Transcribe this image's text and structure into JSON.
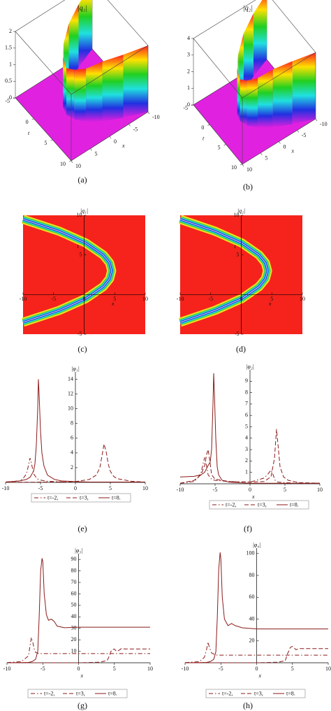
{
  "chart_data": [
    {
      "type": "surface",
      "title": "|q₁|",
      "caption": "(a)",
      "x_label": "x",
      "t_label": "t",
      "xlim": [
        -10,
        10
      ],
      "tlim": [
        -5,
        10
      ],
      "zlim": [
        0,
        2
      ],
      "xticks": [
        10,
        5,
        0,
        -5,
        -10
      ],
      "tticks": [
        -5,
        0,
        5,
        10
      ],
      "zticks": [
        0,
        0.5,
        1,
        1.5,
        2
      ],
      "t": [
        -5,
        -3.5,
        -2,
        -0.5,
        1,
        2.5,
        4,
        5.5,
        7,
        8.5,
        10
      ],
      "x": [
        -10,
        -5,
        -1,
        1.8,
        3.4,
        4,
        3.4,
        1.8,
        -1,
        -5,
        -10
      ],
      "values": [
        2,
        1.9,
        1.8,
        1.6,
        1.5,
        1.4,
        1.5,
        1.6,
        1.8,
        1.9,
        2
      ],
      "floor_color": "#e022e0"
    },
    {
      "type": "surface",
      "title": "|q₂|",
      "caption": "(b)",
      "x_label": "x",
      "t_label": "t",
      "xlim": [
        -10,
        10
      ],
      "tlim": [
        -5,
        10
      ],
      "zlim": [
        0,
        4
      ],
      "xticks": [
        10,
        5,
        0,
        -5,
        -10
      ],
      "tticks": [
        -5,
        0,
        5,
        10
      ],
      "zticks": [
        0,
        1,
        2,
        3,
        4
      ],
      "t": [
        -5,
        -3.5,
        -2,
        -0.5,
        1,
        2.5,
        4,
        5.5,
        7,
        8.5,
        10
      ],
      "x": [
        -10,
        -5,
        -1,
        1.8,
        3.4,
        4,
        3.4,
        1.8,
        -1,
        -5,
        -10
      ],
      "values": [
        4,
        3.8,
        3.5,
        3,
        2.7,
        2.5,
        2.7,
        3,
        3.5,
        3.8,
        4
      ],
      "floor_color": "#e022e0"
    },
    {
      "type": "density",
      "title": "|q₁|",
      "caption": "(c)",
      "x_label": "x",
      "y_label": "t",
      "xlim": [
        -10,
        10
      ],
      "ylim": [
        -5,
        10
      ],
      "xticks": [
        -10,
        -5,
        0,
        5,
        10
      ],
      "yticks": [
        -5,
        5,
        10
      ],
      "x": [
        -10,
        -4.08,
        0.29,
        3.13,
        4.16,
        4.5,
        4.16,
        3.13,
        0.29,
        -4.08,
        -10
      ],
      "y": [
        -3.5,
        -2,
        -0.5,
        1,
        2,
        3,
        4,
        5,
        6.5,
        8,
        9.5
      ],
      "background": "#f5231b"
    },
    {
      "type": "density",
      "title": "|q₂|",
      "caption": "(d)",
      "x_label": "x",
      "y_label": "t",
      "xlim": [
        -10,
        10
      ],
      "ylim": [
        -5,
        10
      ],
      "xticks": [
        -10,
        -5,
        0,
        5,
        10
      ],
      "yticks": [
        -5,
        5,
        10
      ],
      "x": [
        -10,
        -4.3,
        0.1,
        2.9,
        3.95,
        4.3,
        3.95,
        2.9,
        0.1,
        -4.3,
        -10
      ],
      "y": [
        -3.5,
        -2,
        -0.5,
        1,
        2,
        3,
        4,
        5,
        6.5,
        8,
        9.5
      ],
      "background": "#f5231b"
    },
    {
      "type": "line",
      "title": "|φ₁|",
      "caption": "(e)",
      "x_label": "x",
      "xlim": [
        -10,
        10
      ],
      "ylim": [
        0,
        15
      ],
      "xticks": [
        -10,
        -5,
        0,
        5,
        10
      ],
      "yticks": [
        2,
        4,
        6,
        8,
        10,
        12,
        14
      ],
      "series": [
        {
          "name": "t=-2,",
          "color": "#8b1a1a",
          "style": "dash-dot",
          "x": [
            -10,
            -8,
            -7.5,
            -7,
            -6.8,
            -6.5,
            -6.3,
            -6,
            -5.5,
            -5,
            -4,
            -2,
            0,
            2,
            4,
            6,
            8,
            10
          ],
          "values": [
            0.05,
            0.2,
            0.5,
            1.2,
            2,
            3.3,
            2.6,
            1.2,
            0.5,
            0.3,
            0.15,
            0.08,
            0.05,
            0.05,
            0.05,
            0.05,
            0.05,
            0.05
          ]
        },
        {
          "name": "t=3,",
          "color": "#8b1a1a",
          "style": "dashed",
          "x": [
            -10,
            -6,
            -2,
            0,
            2,
            3,
            3.5,
            3.8,
            4.1,
            4.4,
            4.7,
            5,
            5.5,
            6,
            8,
            10
          ],
          "values": [
            0.02,
            0.03,
            0.05,
            0.1,
            0.4,
            1,
            2,
            3.6,
            5.2,
            4.2,
            2.5,
            1.5,
            0.8,
            0.5,
            0.15,
            0.05
          ]
        },
        {
          "name": "t=8.",
          "color": "#8b1a1a",
          "style": "solid",
          "x": [
            -10,
            -8,
            -7,
            -6.5,
            -6,
            -5.8,
            -5.6,
            -5.4,
            -5.3,
            -5.2,
            -5,
            -4.8,
            -4.5,
            -4,
            -3,
            -2,
            0,
            2,
            4,
            6,
            8,
            10
          ],
          "values": [
            0.05,
            0.2,
            0.4,
            0.7,
            1.5,
            2.5,
            5,
            10,
            14,
            12,
            7,
            4,
            2.2,
            1,
            0.4,
            0.2,
            0.1,
            0.05,
            0.05,
            0.05,
            0.05,
            0.05
          ]
        }
      ]
    },
    {
      "type": "line",
      "title": "|φ₂|",
      "caption": "(f)",
      "x_label": "x",
      "xlim": [
        -10,
        10
      ],
      "ylim": [
        0,
        10
      ],
      "xticks": [
        -10,
        -5,
        0,
        5,
        10
      ],
      "yticks": [
        1,
        2,
        3,
        4,
        5,
        6,
        7,
        8,
        9
      ],
      "series": [
        {
          "name": "t=-2,",
          "color": "#8b1a1a",
          "style": "dash-dot",
          "x": [
            -10,
            -8,
            -7.5,
            -7,
            -6.7,
            -6.5,
            -6.2,
            -6,
            -5.5,
            -5,
            -3,
            0,
            2,
            2.5,
            3,
            3.3,
            3.6,
            4,
            5,
            7,
            10
          ],
          "values": [
            0.05,
            0.2,
            0.5,
            1,
            1.8,
            2.3,
            1.5,
            0.8,
            0.4,
            0.3,
            0.2,
            0.15,
            0.5,
            0.8,
            1.2,
            0.8,
            0.3,
            0.15,
            0.1,
            0.05,
            0.05
          ]
        },
        {
          "name": "t=3,",
          "color": "#8b1a1a",
          "style": "dashed",
          "x": [
            -10,
            -8,
            -7,
            -6.5,
            -6.2,
            -6,
            -5.7,
            -5.5,
            -5,
            -3,
            0,
            2,
            3,
            3.5,
            3.8,
            4,
            4.3,
            4.8,
            5.5,
            7,
            10
          ],
          "values": [
            0.05,
            0.3,
            0.8,
            1.6,
            2.6,
            3,
            1.8,
            0.8,
            0.4,
            0.2,
            0.15,
            0.2,
            0.6,
            2.2,
            4.8,
            3.5,
            1.5,
            0.6,
            0.3,
            0.1,
            0.05
          ]
        },
        {
          "name": "t=8.",
          "color": "#8b1a1a",
          "style": "solid",
          "x": [
            -10,
            -8,
            -7,
            -6.5,
            -6,
            -5.7,
            -5.5,
            -5.3,
            -5.2,
            -5.1,
            -4.9,
            -4.7,
            -4.5,
            -4,
            -3,
            -2,
            0,
            3,
            6,
            10
          ],
          "values": [
            0.6,
            0.65,
            0.8,
            1,
            1.6,
            1.9,
            3,
            7,
            9.7,
            8,
            4,
            1.5,
            0.8,
            0.3,
            0.15,
            0.1,
            0.05,
            0.05,
            0.05,
            0.05
          ]
        }
      ]
    },
    {
      "type": "line",
      "title": "|φ₃|",
      "caption": "(g)",
      "x_label": "x",
      "xlim": [
        -10,
        10
      ],
      "ylim": [
        0,
        95
      ],
      "xticks": [
        -10,
        -5,
        0,
        5,
        10
      ],
      "yticks": [
        10,
        20,
        30,
        40,
        50,
        60,
        70,
        80,
        90
      ],
      "series": [
        {
          "name": "t=-2,",
          "color": "#8b1a1a",
          "style": "dash-dot",
          "x": [
            -10,
            -8,
            -7,
            -6.8,
            -6.6,
            -6.4,
            -6.2,
            -6,
            -5.5,
            -5,
            -4,
            -2,
            0,
            2,
            4,
            6,
            8,
            10
          ],
          "values": [
            0.2,
            1,
            6,
            14,
            22,
            18,
            12,
            9,
            8,
            8,
            8,
            8,
            8,
            8,
            8,
            8,
            8,
            8
          ]
        },
        {
          "name": "t=3,",
          "color": "#8b1a1a",
          "style": "dashed",
          "x": [
            -10,
            -4,
            0,
            3,
            4,
            4.3,
            4.6,
            5,
            5.3,
            5.7,
            6,
            6.5,
            8,
            10
          ],
          "values": [
            0,
            0,
            0,
            0.5,
            2,
            6,
            11,
            12,
            10,
            11,
            12.5,
            12,
            12,
            12
          ]
        },
        {
          "name": "t=8.",
          "color": "#8b1a1a",
          "style": "solid",
          "x": [
            -10,
            -8,
            -7,
            -6.5,
            -6,
            -5.7,
            -5.5,
            -5.3,
            -5.1,
            -5,
            -4.8,
            -4.5,
            -4.2,
            -3.8,
            -3.4,
            -3,
            -2,
            0,
            2,
            5,
            10
          ],
          "values": [
            0,
            0.1,
            0.3,
            1,
            3,
            10,
            40,
            80,
            91,
            88,
            60,
            42,
            37,
            38,
            36,
            32,
            30.5,
            31,
            31,
            31,
            31
          ]
        }
      ]
    },
    {
      "type": "line",
      "title": "|φ₄|",
      "caption": "(h)",
      "x_label": "x",
      "xlim": [
        -10,
        10
      ],
      "ylim": [
        0,
        105
      ],
      "xticks": [
        -10,
        -5,
        0,
        5,
        10
      ],
      "yticks": [
        20,
        40,
        60,
        80,
        100
      ],
      "series": [
        {
          "name": "t=-2,",
          "color": "#8b1a1a",
          "style": "dash-dot",
          "x": [
            -10,
            -8,
            -7.3,
            -7,
            -6.8,
            -6.6,
            -6.3,
            -6,
            -5.5,
            -5,
            -2,
            0,
            4,
            10
          ],
          "values": [
            0.2,
            1,
            5,
            12,
            19,
            14,
            9,
            8,
            7,
            7,
            7,
            7,
            7,
            7
          ]
        },
        {
          "name": "t=3,",
          "color": "#8b1a1a",
          "style": "dashed",
          "x": [
            -10,
            -4,
            0,
            3,
            4,
            4.3,
            4.7,
            5,
            5.5,
            6,
            7,
            10
          ],
          "values": [
            0,
            0,
            0,
            0.5,
            2,
            8,
            14,
            15,
            12,
            13,
            13,
            13
          ]
        },
        {
          "name": "t=8.",
          "color": "#8b1a1a",
          "style": "solid",
          "x": [
            -10,
            -8,
            -7,
            -6.5,
            -6,
            -5.7,
            -5.5,
            -5.3,
            -5.1,
            -5,
            -4.8,
            -4.5,
            -4,
            -3.5,
            -3,
            -2,
            0,
            5,
            10
          ],
          "values": [
            0,
            0.1,
            0.3,
            1,
            3,
            10,
            40,
            85,
            101,
            95,
            60,
            40,
            34,
            36,
            34,
            32,
            31,
            31,
            31
          ]
        }
      ]
    }
  ]
}
